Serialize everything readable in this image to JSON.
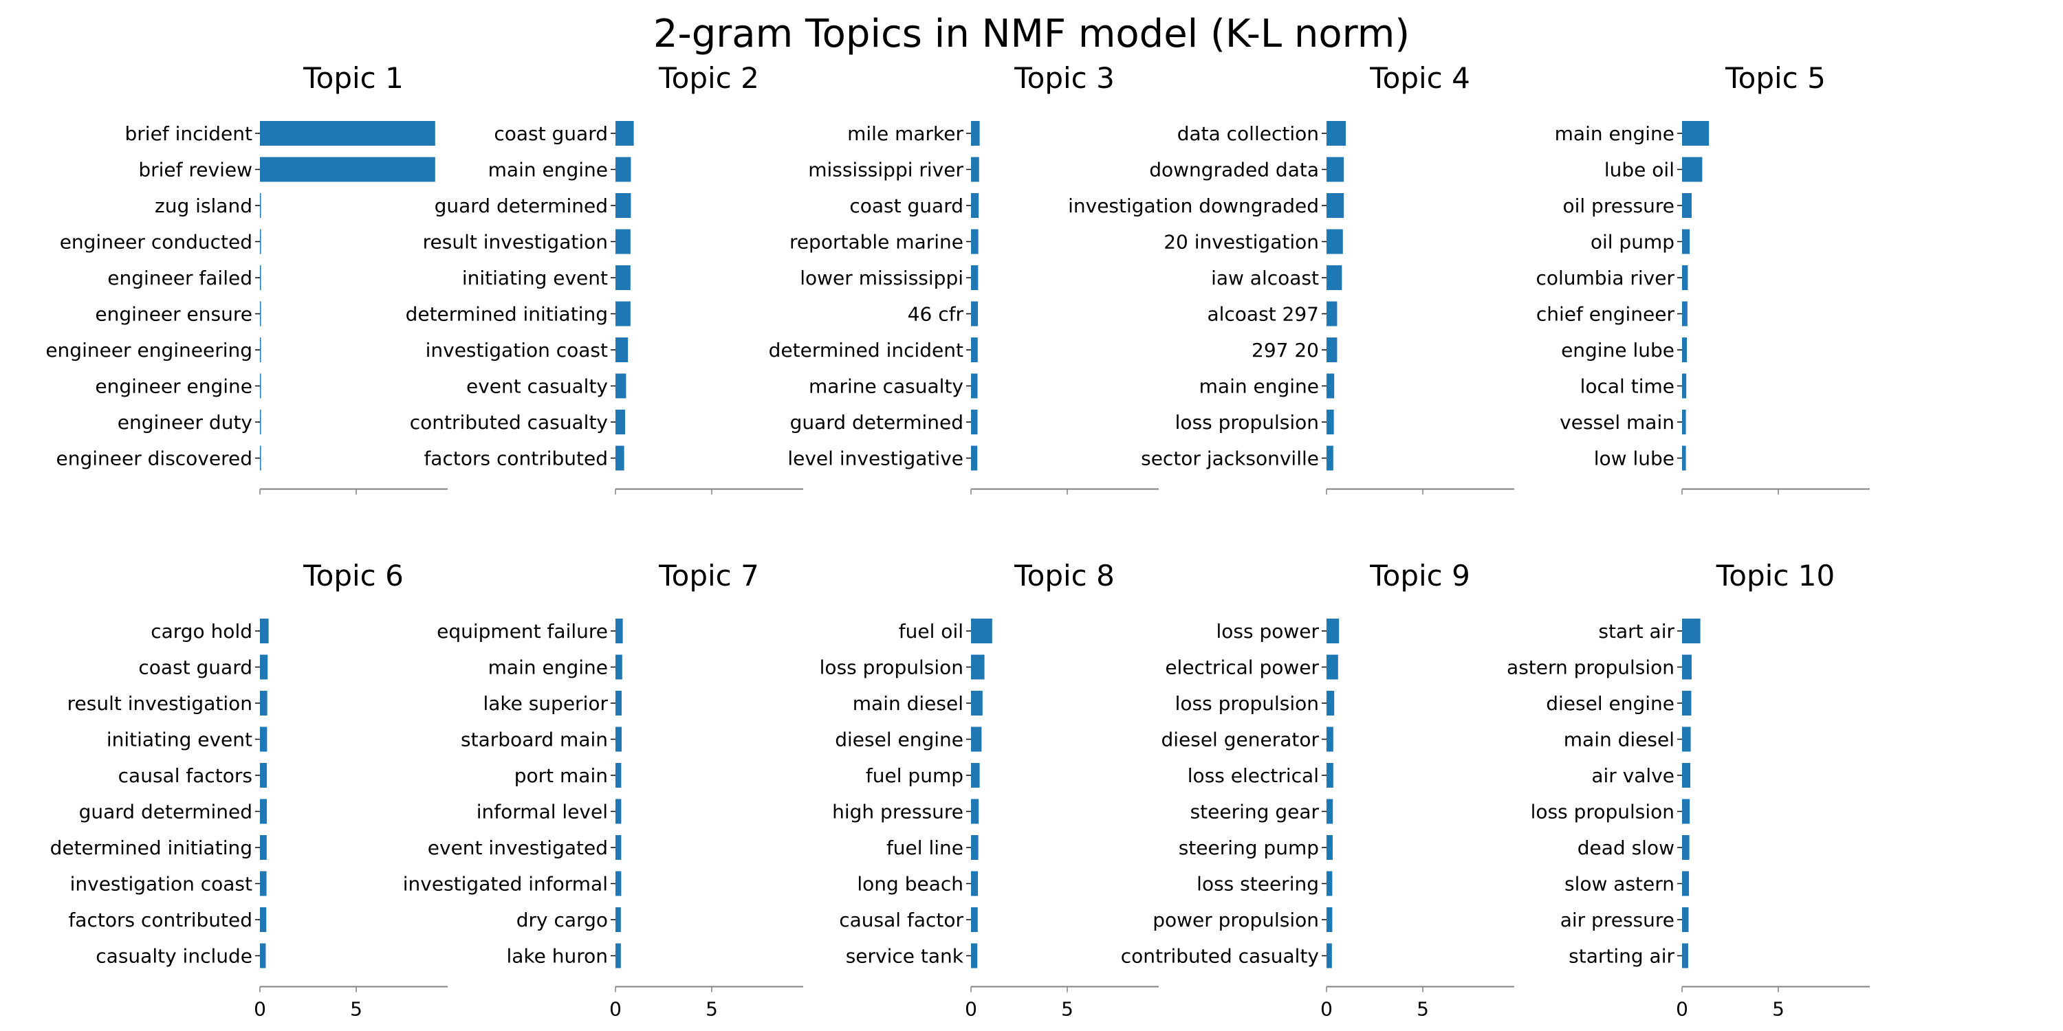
{
  "title": "2-gram Topics in NMF model (K-L norm)",
  "chart_data": [
    {
      "type": "bar",
      "orientation": "horizontal",
      "title": "Topic 1",
      "categories": [
        "brief incident",
        "brief review",
        "zug island",
        "engineer conducted",
        "engineer failed",
        "engineer ensure",
        "engineer engineering",
        "engineer engine",
        "engineer duty",
        "engineer discovered"
      ],
      "values": [
        9.1,
        9.1,
        0.05,
        0.04,
        0.04,
        0.04,
        0.04,
        0.04,
        0.04,
        0.04
      ],
      "xlim": [
        0,
        9.5
      ],
      "xticks": [
        0,
        5
      ],
      "show_xtick_labels": false
    },
    {
      "type": "bar",
      "orientation": "horizontal",
      "title": "Topic 2",
      "categories": [
        "coast guard",
        "main engine",
        "guard determined",
        "result investigation",
        "initiating event",
        "determined initiating",
        "investigation coast",
        "event casualty",
        "contributed casualty",
        "factors contributed"
      ],
      "values": [
        0.95,
        0.8,
        0.8,
        0.78,
        0.78,
        0.78,
        0.65,
        0.55,
        0.5,
        0.45
      ],
      "xlim": [
        0,
        9.5
      ],
      "xticks": [
        0,
        5
      ],
      "show_xtick_labels": false
    },
    {
      "type": "bar",
      "orientation": "horizontal",
      "title": "Topic 3",
      "categories": [
        "mile marker",
        "mississippi river",
        "coast guard",
        "reportable marine",
        "lower mississippi",
        "46 cfr",
        "determined incident",
        "marine casualty",
        "guard determined",
        "level investigative"
      ],
      "values": [
        0.45,
        0.42,
        0.4,
        0.38,
        0.37,
        0.36,
        0.35,
        0.34,
        0.34,
        0.33
      ],
      "xlim": [
        0,
        9.5
      ],
      "xticks": [
        0,
        5
      ],
      "show_xtick_labels": false
    },
    {
      "type": "bar",
      "orientation": "horizontal",
      "title": "Topic 4",
      "categories": [
        "data collection",
        "downgraded data",
        "investigation downgraded",
        "20 investigation",
        "iaw alcoast",
        "alcoast 297",
        "297 20",
        "main engine",
        "loss propulsion",
        "sector jacksonville"
      ],
      "values": [
        1.0,
        0.9,
        0.9,
        0.85,
        0.8,
        0.55,
        0.55,
        0.4,
        0.38,
        0.35
      ],
      "xlim": [
        0,
        9.5
      ],
      "xticks": [
        0,
        5
      ],
      "show_xtick_labels": false
    },
    {
      "type": "bar",
      "orientation": "horizontal",
      "title": "Topic 5",
      "categories": [
        "main engine",
        "lube oil",
        "oil pressure",
        "oil pump",
        "columbia river",
        "chief engineer",
        "engine lube",
        "local time",
        "vessel main",
        "low lube"
      ],
      "values": [
        1.4,
        1.05,
        0.5,
        0.4,
        0.3,
        0.28,
        0.25,
        0.22,
        0.2,
        0.2
      ],
      "xlim": [
        0,
        9.5
      ],
      "xticks": [
        0,
        5
      ],
      "show_xtick_labels": false
    },
    {
      "type": "bar",
      "orientation": "horizontal",
      "title": "Topic 6",
      "categories": [
        "cargo hold",
        "coast guard",
        "result investigation",
        "initiating event",
        "causal factors",
        "guard determined",
        "determined initiating",
        "investigation coast",
        "factors contributed",
        "casualty include"
      ],
      "values": [
        0.45,
        0.4,
        0.38,
        0.37,
        0.36,
        0.36,
        0.35,
        0.34,
        0.33,
        0.3
      ],
      "xlim": [
        0,
        9.5
      ],
      "xticks": [
        0,
        5
      ],
      "show_xtick_labels": true
    },
    {
      "type": "bar",
      "orientation": "horizontal",
      "title": "Topic 7",
      "categories": [
        "equipment failure",
        "main engine",
        "lake superior",
        "starboard main",
        "port main",
        "informal level",
        "event investigated",
        "investigated informal",
        "dry cargo",
        "lake huron"
      ],
      "values": [
        0.38,
        0.35,
        0.32,
        0.32,
        0.3,
        0.3,
        0.3,
        0.3,
        0.28,
        0.28
      ],
      "xlim": [
        0,
        9.5
      ],
      "xticks": [
        0,
        5
      ],
      "show_xtick_labels": true
    },
    {
      "type": "bar",
      "orientation": "horizontal",
      "title": "Topic 8",
      "categories": [
        "fuel oil",
        "loss propulsion",
        "main diesel",
        "diesel engine",
        "fuel pump",
        "high pressure",
        "fuel line",
        "long beach",
        "causal factor",
        "service tank"
      ],
      "values": [
        1.1,
        0.7,
        0.6,
        0.55,
        0.45,
        0.4,
        0.38,
        0.36,
        0.35,
        0.33
      ],
      "xlim": [
        0,
        9.5
      ],
      "xticks": [
        0,
        5
      ],
      "show_xtick_labels": true
    },
    {
      "type": "bar",
      "orientation": "horizontal",
      "title": "Topic 9",
      "categories": [
        "loss power",
        "electrical power",
        "loss propulsion",
        "diesel generator",
        "loss electrical",
        "steering gear",
        "steering pump",
        "loss steering",
        "power propulsion",
        "contributed casualty"
      ],
      "values": [
        0.65,
        0.6,
        0.4,
        0.35,
        0.35,
        0.33,
        0.32,
        0.3,
        0.3,
        0.28
      ],
      "xlim": [
        0,
        9.5
      ],
      "xticks": [
        0,
        5
      ],
      "show_xtick_labels": true
    },
    {
      "type": "bar",
      "orientation": "horizontal",
      "title": "Topic 10",
      "categories": [
        "start air",
        "astern propulsion",
        "diesel engine",
        "main diesel",
        "air valve",
        "loss propulsion",
        "dead slow",
        "slow astern",
        "air pressure",
        "starting air"
      ],
      "values": [
        0.95,
        0.5,
        0.48,
        0.45,
        0.43,
        0.4,
        0.38,
        0.36,
        0.34,
        0.32
      ],
      "xlim": [
        0,
        9.5
      ],
      "xticks": [
        0,
        5
      ],
      "show_xtick_labels": true
    }
  ],
  "colors": {
    "bar": "#1f77b4",
    "axis": "#000000",
    "spine": "#808080"
  }
}
